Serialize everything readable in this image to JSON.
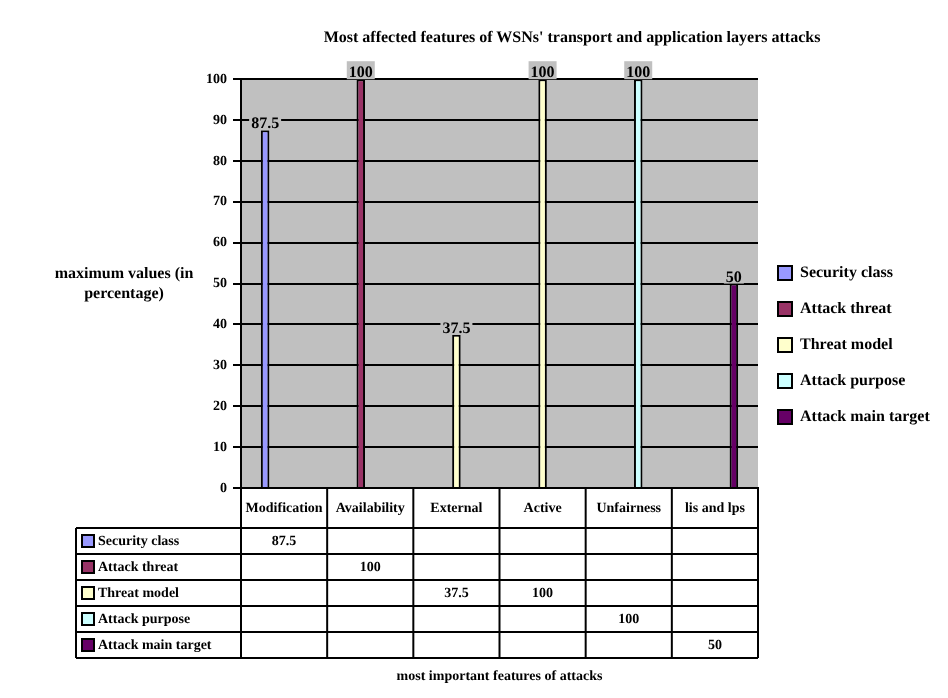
{
  "chart_data": {
    "type": "bar",
    "title": "Most affected features of WSNs' transport and application layers attacks",
    "ylabel": "maximum values (in percentage)",
    "categories": [
      "Modification",
      "Availability",
      "External",
      "Active",
      "Unfairness",
      "lis and lps"
    ],
    "series": [
      {
        "name": "Security class",
        "color": "#9999ff",
        "values": [
          87.5,
          null,
          null,
          null,
          null,
          null
        ]
      },
      {
        "name": "Attack threat",
        "color": "#993366",
        "values": [
          null,
          100,
          null,
          null,
          null,
          null
        ]
      },
      {
        "name": "Threat model",
        "color": "#ffffcc",
        "values": [
          null,
          null,
          37.5,
          100,
          null,
          null
        ]
      },
      {
        "name": "Attack purpose",
        "color": "#ccffff",
        "values": [
          null,
          null,
          null,
          null,
          100,
          null
        ]
      },
      {
        "name": "Attack main target",
        "color": "#660066",
        "values": [
          null,
          null,
          null,
          null,
          null,
          50
        ]
      }
    ],
    "annotations": [
      "most important features of attacks",
      "87.5",
      "100",
      "37.5",
      "100",
      "100",
      "50"
    ],
    "ylim": [
      0,
      100
    ],
    "yticks": [
      0,
      10,
      20,
      30,
      40,
      50,
      60,
      70,
      80,
      90,
      100
    ],
    "grid": "y",
    "legend": "right",
    "data_labels": true
  }
}
